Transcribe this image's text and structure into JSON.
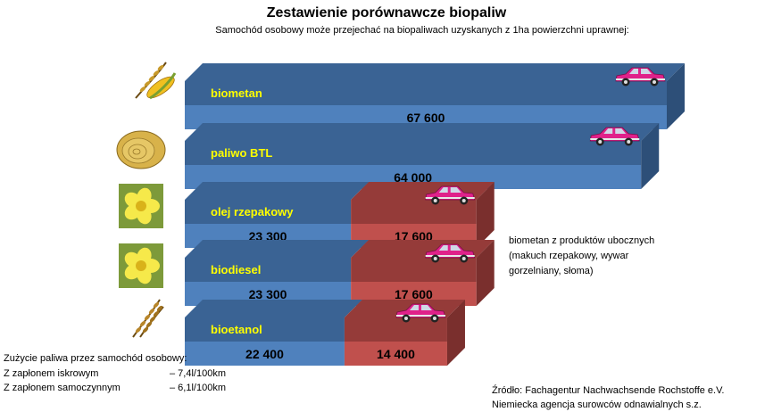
{
  "title": "Zestawienie porównawcze biopaliw",
  "subtitle": "Samochód osobowy może przejechać na biopaliwach uzyskanych z 1ha powierzchni uprawnej:",
  "chart_data": {
    "type": "bar",
    "orientation": "horizontal",
    "stacked": true,
    "unit": "",
    "categories": [
      "biometan",
      "paliwo BTL",
      "olej rzepakowy",
      "biodiesel",
      "bioetanol"
    ],
    "series": [
      {
        "values": [
          67600,
          64000,
          23300,
          23300,
          22400
        ],
        "labels": [
          "67 600",
          "64 000",
          "23 300",
          "23 300",
          "22 400"
        ]
      },
      {
        "name": "biometan z produktów ubocznych",
        "values": [
          0,
          0,
          17600,
          17600,
          14400
        ],
        "labels": [
          "",
          "",
          "17 600",
          "17 600",
          "14 400"
        ]
      }
    ]
  },
  "colors": {
    "series1_front": "#4f81bd",
    "series1_top": "#3a6394",
    "series1_side": "#2d4f78",
    "series2_front": "#c0504d",
    "series2_top": "#953b39",
    "series2_side": "#7a2f2d",
    "category_label": "#ffff00",
    "car_body": "#e0218a"
  },
  "icons": [
    "wheat-corn-icon",
    "straw-bale-icon",
    "rapeseed-flower-icon",
    "rapeseed-flower-icon",
    "wheat-icon"
  ],
  "note": {
    "line1": "biometan z produktów ubocznych",
    "line2": "(makuch rzepakowy, wywar",
    "line3": "gorzelniany, słoma)"
  },
  "fuel": {
    "heading": "Zużycie paliwa przez samochód osobowy:",
    "rows": [
      {
        "label": "Z zapłonem iskrowym",
        "value": "– 7,4l/100km"
      },
      {
        "label": "Z zapłonem samoczynnym",
        "value": "– 6,1l/100km"
      }
    ]
  },
  "source": {
    "line1": "Źródło: Fachagentur Nachwachsende Rochstoffe e.V.",
    "line2": "Niemiecka agencja surowców odnawialnych s.z."
  }
}
